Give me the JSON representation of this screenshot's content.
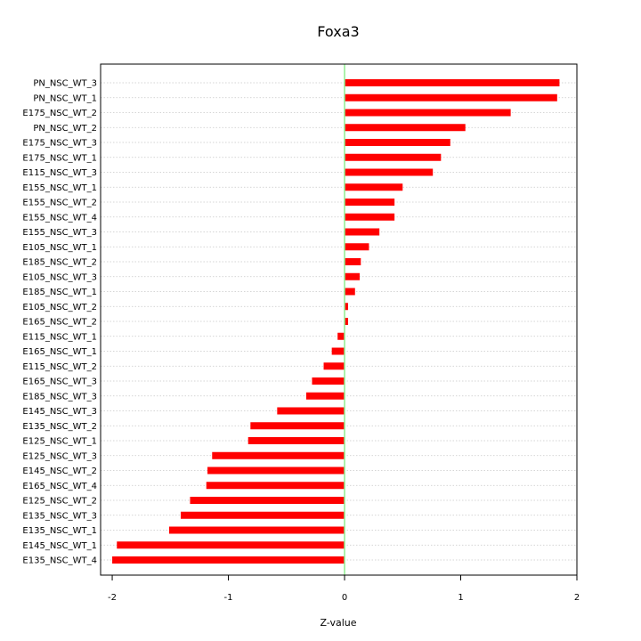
{
  "chart_data": {
    "type": "bar",
    "orientation": "horizontal",
    "title": "Foxa3",
    "xlabel": "Z-value",
    "ylabel": "",
    "xlim": [
      -2.1,
      2.0
    ],
    "xticks": [
      -2,
      -1,
      0,
      1,
      2
    ],
    "grid": "horizontal dotted",
    "bar_color": "#ff0000",
    "zero_line_color": "#90ee90",
    "categories": [
      "PN_NSC_WT_3",
      "PN_NSC_WT_1",
      "E175_NSC_WT_2",
      "PN_NSC_WT_2",
      "E175_NSC_WT_3",
      "E175_NSC_WT_1",
      "E115_NSC_WT_3",
      "E155_NSC_WT_1",
      "E155_NSC_WT_2",
      "E155_NSC_WT_4",
      "E155_NSC_WT_3",
      "E105_NSC_WT_1",
      "E185_NSC_WT_2",
      "E105_NSC_WT_3",
      "E185_NSC_WT_1",
      "E105_NSC_WT_2",
      "E165_NSC_WT_2",
      "E115_NSC_WT_1",
      "E165_NSC_WT_1",
      "E115_NSC_WT_2",
      "E165_NSC_WT_3",
      "E185_NSC_WT_3",
      "E145_NSC_WT_3",
      "E135_NSC_WT_2",
      "E125_NSC_WT_1",
      "E125_NSC_WT_3",
      "E145_NSC_WT_2",
      "E165_NSC_WT_4",
      "E125_NSC_WT_2",
      "E135_NSC_WT_3",
      "E135_NSC_WT_1",
      "E145_NSC_WT_1",
      "E135_NSC_WT_4"
    ],
    "values": [
      1.85,
      1.83,
      1.43,
      1.04,
      0.91,
      0.83,
      0.76,
      0.5,
      0.43,
      0.43,
      0.3,
      0.21,
      0.14,
      0.13,
      0.09,
      0.03,
      0.03,
      -0.06,
      -0.11,
      -0.18,
      -0.28,
      -0.33,
      -0.58,
      -0.81,
      -0.83,
      -1.14,
      -1.18,
      -1.19,
      -1.33,
      -1.41,
      -1.51,
      -1.96,
      -2.0
    ]
  }
}
